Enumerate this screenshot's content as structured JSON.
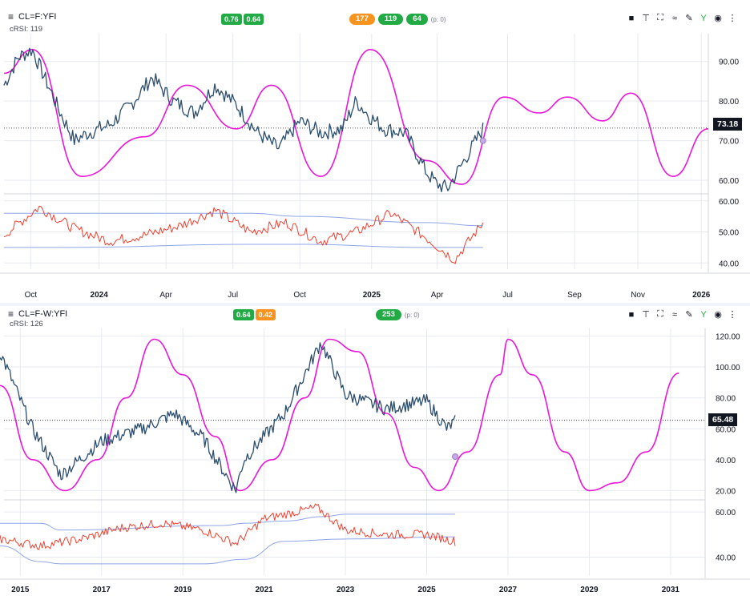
{
  "top": {
    "symbol": "CL=F:YFI",
    "indicator": "cRSI: 119",
    "badges": [
      "0.76",
      "0.64"
    ],
    "cycles": [
      "177",
      "119",
      "64"
    ],
    "p_note": "(p: 0)",
    "last_price": "73.18",
    "y_ticks": [
      "90.00",
      "80.00",
      "70.00",
      "60.00"
    ],
    "osc_ticks": [
      "60.00",
      "50.00",
      "40.00"
    ],
    "x_ticks": [
      "Oct",
      "2024",
      "Apr",
      "Jul",
      "Oct",
      "2025",
      "Apr",
      "Jul",
      "Sep",
      "Nov",
      "2026"
    ]
  },
  "bottom": {
    "symbol": "CL=F-W:YFI",
    "indicator": "cRSI: 126",
    "badges": [
      "0.64",
      "0.42"
    ],
    "cycles": [
      "253"
    ],
    "p_note": "(p: 0)",
    "last_price": "65.48",
    "y_ticks": [
      "120.00",
      "100.00",
      "80.00",
      "60.00",
      "40.00",
      "20.00"
    ],
    "osc_ticks": [
      "60.00",
      "40.00"
    ],
    "x_ticks": [
      "2015",
      "2017",
      "2019",
      "2021",
      "2023",
      "2025",
      "2027",
      "2029",
      "2031"
    ]
  },
  "colors": {
    "price": "#2a4d6e",
    "cycle": "#ea16d8",
    "rsi": "#f23f2e",
    "band": "#8fa5e8"
  },
  "chart_data": [
    {
      "type": "line",
      "title": "CL=F:YFI",
      "ylim": [
        57,
        97
      ],
      "series": [
        {
          "name": "CL=F:YFI",
          "x": [
            0,
            0.02,
            0.04,
            0.06,
            0.08,
            0.1,
            0.12,
            0.15,
            0.18,
            0.21,
            0.24,
            0.27,
            0.3,
            0.33,
            0.36,
            0.39,
            0.42,
            0.45,
            0.48,
            0.5,
            0.52,
            0.54,
            0.57,
            0.6,
            0.615,
            0.63,
            0.65,
            0.68
          ],
          "values": [
            84,
            91,
            93,
            85,
            77,
            70,
            72,
            74,
            79,
            86,
            80,
            77,
            84,
            79,
            72,
            68,
            75,
            72,
            73,
            80,
            76,
            73,
            72,
            62,
            59,
            58,
            64,
            73
          ]
        },
        {
          "x": [
            0,
            0.04,
            0.11,
            0.2,
            0.26,
            0.33,
            0.38,
            0.45,
            0.52,
            0.6,
            0.65,
            0.71,
            0.76,
            0.8,
            0.85,
            0.89,
            0.95,
            1.0
          ],
          "values": [
            87,
            93,
            61,
            71,
            84,
            73,
            84,
            61,
            93,
            65,
            59,
            81,
            77,
            81,
            75,
            82,
            61,
            73
          ]
        }
      ]
    },
    {
      "type": "line",
      "title": "cRSI: 119",
      "ylim": [
        38,
        62
      ],
      "series": [
        {
          "x": [
            0,
            0.05,
            0.1,
            0.15,
            0.2,
            0.25,
            0.3,
            0.35,
            0.4,
            0.45,
            0.5,
            0.55,
            0.6,
            0.64,
            0.68
          ],
          "values": [
            49,
            58,
            51,
            47,
            49,
            52,
            57,
            50,
            53,
            47,
            50,
            56,
            48,
            41,
            53
          ]
        },
        {
          "x": [
            0,
            0.08,
            0.35,
            0.42,
            0.6,
            0.68
          ],
          "values": [
            56,
            56,
            56,
            55,
            53,
            52
          ]
        },
        {
          "x": [
            0,
            0.08,
            0.35,
            0.42,
            0.6,
            0.68
          ],
          "values": [
            45,
            45,
            46,
            46,
            45,
            45
          ]
        }
      ]
    },
    {
      "type": "line",
      "title": "CL=F-W:YFI",
      "ylim": [
        15,
        125
      ],
      "series": [
        {
          "name": "CL=F-W:YFI",
          "x": [
            2014.5,
            2015.3,
            2016.0,
            2017.0,
            2018.0,
            2018.8,
            2019.5,
            2020.3,
            2020.5,
            2021.5,
            2022.4,
            2023.0,
            2024.0,
            2025.0,
            2025.5,
            2025.7
          ],
          "values": [
            110,
            60,
            30,
            52,
            60,
            70,
            54,
            20,
            40,
            70,
            116,
            82,
            73,
            78,
            60,
            65
          ]
        },
        {
          "x": [
            2014.5,
            2015.3,
            2016.1,
            2016.9,
            2017.6,
            2018.3,
            2019.0,
            2019.8,
            2020.4,
            2021.2,
            2022.0,
            2022.6,
            2023.3,
            2024.0,
            2024.7,
            2025.3,
            2026.0,
            2026.8,
            2027.0,
            2027.6,
            2028.4,
            2029.0,
            2029.7,
            2030.4,
            2031.2
          ],
          "values": [
            88,
            40,
            20,
            40,
            80,
            118,
            95,
            55,
            20,
            40,
            80,
            118,
            110,
            70,
            35,
            20,
            45,
            95,
            118,
            95,
            45,
            20,
            25,
            45,
            96
          ]
        }
      ]
    },
    {
      "type": "line",
      "title": "cRSI: 126",
      "ylim": [
        32,
        65
      ],
      "series": [
        {
          "x": [
            2014.5,
            2015.5,
            2016.5,
            2017.5,
            2018.5,
            2019.5,
            2020.3,
            2021.0,
            2022.3,
            2023.0,
            2024.0,
            2025.0,
            2025.7
          ],
          "values": [
            48,
            45,
            48,
            53,
            55,
            52,
            46,
            57,
            62,
            52,
            50,
            50,
            47
          ]
        },
        {
          "x": [
            2014.5,
            2015.5,
            2016.0,
            2020.0,
            2020.5,
            2021.5,
            2022.5,
            2023.0,
            2025.7
          ],
          "values": [
            55,
            55,
            52,
            54,
            55,
            56,
            58,
            59,
            59
          ]
        },
        {
          "x": [
            2014.5,
            2015.5,
            2016.0,
            2019.5,
            2020.5,
            2021.5,
            2023.0,
            2025.7
          ],
          "values": [
            45,
            38,
            37,
            37,
            39,
            47,
            48,
            49
          ]
        }
      ]
    }
  ]
}
